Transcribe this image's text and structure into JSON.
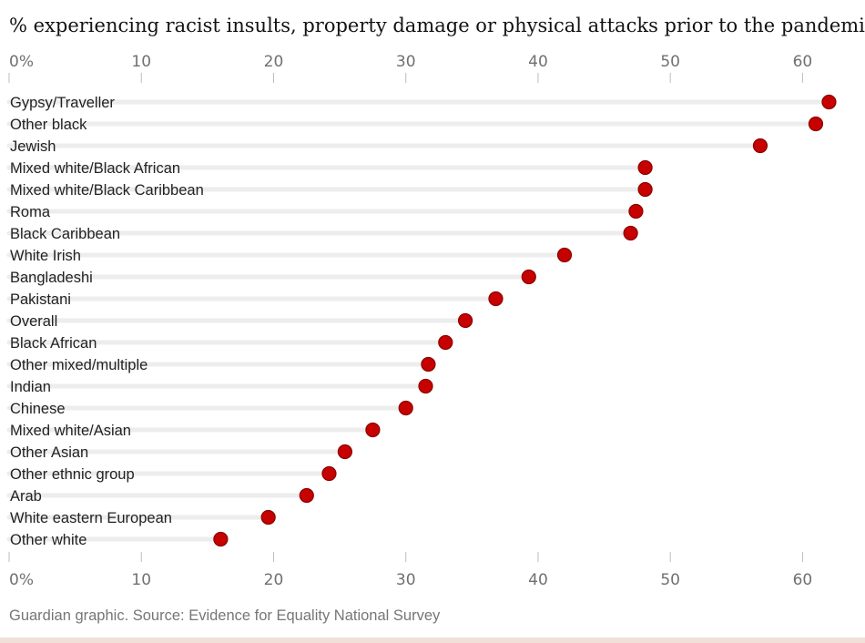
{
  "chart_data": {
    "type": "dot",
    "title": "% experiencing racist insults, property damage or physical attacks prior to the pandemic",
    "source": "Guardian graphic. Source: Evidence for Equality National Survey",
    "xlim": [
      0,
      63
    ],
    "ticks": [
      {
        "value": 0,
        "label": "0%"
      },
      {
        "value": 10,
        "label": "10"
      },
      {
        "value": 20,
        "label": "20"
      },
      {
        "value": 30,
        "label": "30"
      },
      {
        "value": 40,
        "label": "40"
      },
      {
        "value": 50,
        "label": "50"
      },
      {
        "value": 60,
        "label": "60"
      }
    ],
    "categories": [
      "Gypsy/Traveller",
      "Other black",
      "Jewish",
      "Mixed white/Black African",
      "Mixed white/Black Caribbean",
      "Roma",
      "Black Caribbean",
      "White Irish",
      "Bangladeshi",
      "Pakistani",
      "Overall",
      "Black African",
      "Other mixed/multiple",
      "Indian",
      "Chinese",
      "Mixed white/Asian",
      "Other Asian",
      "Other ethnic group",
      "Arab",
      "White eastern European",
      "Other white"
    ],
    "values": [
      62,
      61,
      56.8,
      48.1,
      48.1,
      47.4,
      47,
      42,
      39.3,
      36.8,
      34.5,
      33,
      31.7,
      31.5,
      30,
      27.5,
      25.4,
      24.2,
      22.5,
      19.6,
      16
    ],
    "colors": {
      "dot": "#c70000",
      "dot_stroke": "#8a0000",
      "track": "#ededed",
      "tick_line": "#bdbdbd",
      "bottom_rule": "#f0e0d8"
    }
  }
}
